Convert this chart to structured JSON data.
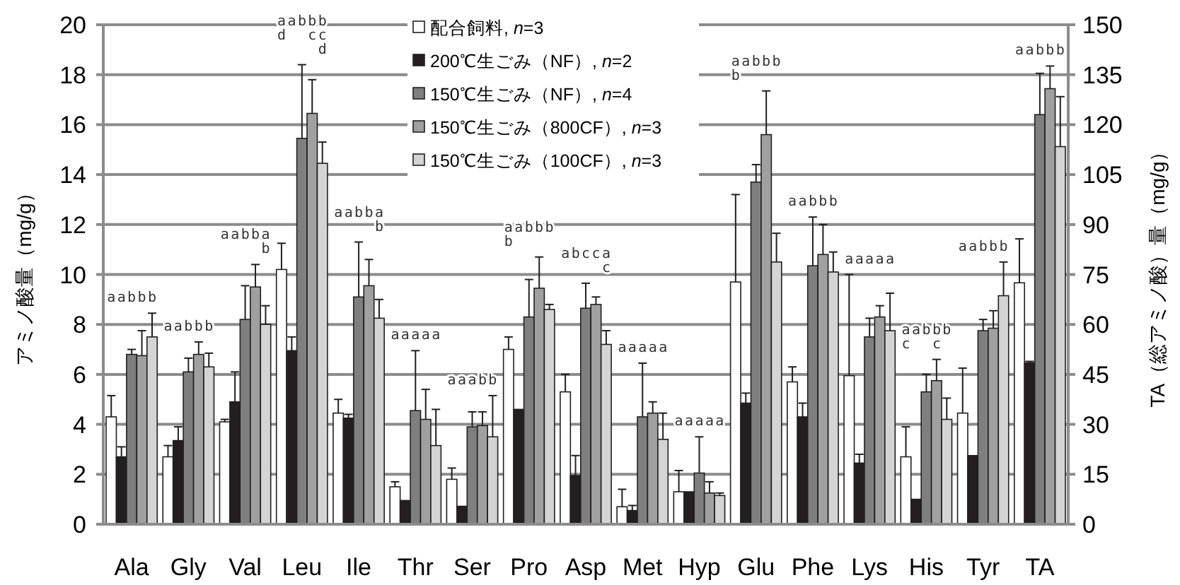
{
  "chart_data": {
    "type": "bar",
    "ylabel": "アミノ酸量（mg/g）",
    "y2label": "TA（総アミノ酸）量（mg/g）",
    "categories": [
      "Ala",
      "Gly",
      "Val",
      "Leu",
      "Ile",
      "Thr",
      "Ser",
      "Pro",
      "Asp",
      "Met",
      "Hyp",
      "Glu",
      "Phe",
      "Lys",
      "His",
      "Tyr",
      "TA"
    ],
    "ylim": [
      0,
      20
    ],
    "yticks": [
      0,
      2,
      4,
      6,
      8,
      10,
      12,
      14,
      16,
      18,
      20
    ],
    "y2lim": [
      0,
      150
    ],
    "y2ticks": [
      0,
      15,
      30,
      45,
      60,
      75,
      90,
      105,
      120,
      135,
      150
    ],
    "grid": "y",
    "legend": "top",
    "series": [
      {
        "name": "配合飼料, *n*=3",
        "color": "#ffffff",
        "values": [
          4.3,
          2.7,
          4.1,
          10.2,
          4.45,
          1.5,
          1.8,
          7.0,
          5.3,
          0.7,
          1.3,
          9.7,
          5.7,
          5.95,
          2.7,
          4.45,
          null
        ],
        "errors": [
          [
            4.3,
            5.15
          ],
          [
            2.7,
            3.15
          ],
          [
            4.1,
            4.2
          ],
          [
            10.2,
            11.25
          ],
          [
            4.45,
            5.0
          ],
          [
            1.5,
            1.7
          ],
          [
            1.8,
            2.25
          ],
          [
            7.0,
            7.5
          ],
          [
            5.3,
            6.0
          ],
          [
            0.7,
            1.4
          ],
          [
            1.3,
            2.15
          ],
          [
            9.7,
            13.2
          ],
          [
            5.7,
            6.3
          ],
          [
            5.95,
            10.0
          ],
          [
            2.7,
            3.9
          ],
          [
            4.45,
            6.25
          ],
          null
        ]
      },
      {
        "name": "200℃生ごみ（NF）, *n*=2",
        "color": "#231f20",
        "values": [
          2.7,
          3.35,
          4.9,
          6.95,
          4.25,
          0.95,
          0.72,
          4.6,
          1.95,
          0.55,
          1.3,
          4.85,
          4.3,
          2.45,
          1.0,
          2.75,
          null
        ],
        "errors": [
          [
            2.7,
            3.1
          ],
          [
            3.35,
            3.9
          ],
          [
            4.9,
            6.1
          ],
          [
            6.95,
            7.5
          ],
          [
            4.25,
            4.4
          ],
          null,
          null,
          null,
          [
            1.95,
            2.75
          ],
          [
            0.55,
            0.75
          ],
          null,
          [
            4.85,
            5.25
          ],
          [
            4.3,
            4.85
          ],
          [
            2.45,
            2.8
          ],
          null,
          null,
          null
        ]
      },
      {
        "name": "150℃生ごみ（NF）, *n*=4",
        "color": "#7f7f7f",
        "values": [
          6.8,
          6.1,
          8.2,
          15.45,
          9.1,
          4.55,
          3.9,
          8.3,
          8.65,
          4.3,
          2.05,
          13.7,
          10.35,
          7.5,
          5.3,
          7.75,
          null
        ],
        "errors": [
          [
            6.8,
            7.0
          ],
          [
            6.1,
            6.65
          ],
          [
            8.2,
            9.55
          ],
          [
            15.45,
            18.4
          ],
          [
            9.1,
            11.3
          ],
          [
            4.55,
            6.95
          ],
          [
            3.9,
            4.5
          ],
          [
            8.3,
            9.8
          ],
          [
            8.65,
            9.65
          ],
          [
            4.3,
            6.45
          ],
          [
            2.05,
            3.5
          ],
          [
            13.7,
            14.4
          ],
          [
            10.35,
            12.3
          ],
          [
            7.5,
            8.25
          ],
          [
            5.3,
            6.0
          ],
          [
            7.75,
            8.2
          ],
          null
        ]
      },
      {
        "name": "150℃生ごみ（800CF）, *n*=3",
        "color": "#a0a0a0",
        "values": [
          6.75,
          6.8,
          9.5,
          16.45,
          9.55,
          4.2,
          3.95,
          9.45,
          8.8,
          4.45,
          1.25,
          15.6,
          10.8,
          8.3,
          5.75,
          7.85,
          null
        ],
        "errors": [
          [
            6.75,
            7.75
          ],
          [
            6.8,
            7.3
          ],
          [
            9.5,
            10.4
          ],
          [
            16.45,
            17.8
          ],
          [
            9.55,
            10.6
          ],
          [
            4.2,
            5.4
          ],
          [
            3.95,
            4.5
          ],
          [
            9.45,
            10.7
          ],
          [
            8.8,
            9.1
          ],
          [
            4.45,
            4.9
          ],
          [
            1.25,
            1.7
          ],
          [
            15.6,
            17.35
          ],
          [
            10.8,
            12.0
          ],
          [
            8.3,
            8.75
          ],
          [
            5.75,
            6.6
          ],
          [
            7.85,
            8.55
          ],
          null
        ]
      },
      {
        "name": "150℃生ごみ（100CF）, *n*=3",
        "color": "#d4d4d4",
        "values": [
          7.5,
          6.3,
          8.0,
          14.45,
          8.25,
          3.15,
          3.5,
          8.6,
          7.2,
          3.4,
          1.15,
          10.5,
          10.1,
          7.75,
          4.2,
          9.15,
          null
        ],
        "errors": [
          [
            7.5,
            8.45
          ],
          [
            6.3,
            6.85
          ],
          [
            8.0,
            8.75
          ],
          [
            14.45,
            15.3
          ],
          [
            8.25,
            9.0
          ],
          [
            3.15,
            4.6
          ],
          [
            3.5,
            5.15
          ],
          [
            8.6,
            8.8
          ],
          [
            7.2,
            7.75
          ],
          [
            3.4,
            4.45
          ],
          [
            1.15,
            1.25
          ],
          [
            10.5,
            11.65
          ],
          [
            10.1,
            10.9
          ],
          [
            7.75,
            9.25
          ],
          [
            4.2,
            5.05
          ],
          [
            9.15,
            10.5
          ],
          null
        ]
      },
      {
        "axis": "y2",
        "color": "#ffffff",
        "values": [
          null,
          null,
          null,
          null,
          null,
          null,
          null,
          null,
          null,
          null,
          null,
          null,
          null,
          null,
          null,
          null,
          72.5
        ],
        "errors": [
          null,
          null,
          null,
          null,
          null,
          null,
          null,
          null,
          null,
          null,
          null,
          null,
          null,
          null,
          null,
          null,
          [
            72.5,
            85.7
          ]
        ]
      },
      {
        "axis": "y2",
        "color": "#231f20",
        "values": [
          null,
          null,
          null,
          null,
          null,
          null,
          null,
          null,
          null,
          null,
          null,
          null,
          null,
          null,
          null,
          null,
          48.5
        ],
        "errors": [
          null,
          null,
          null,
          null,
          null,
          null,
          null,
          null,
          null,
          null,
          null,
          null,
          null,
          null,
          null,
          null,
          [
            48.5,
            48.9
          ]
        ]
      },
      {
        "axis": "y2",
        "color": "#7f7f7f",
        "values": [
          null,
          null,
          null,
          null,
          null,
          null,
          null,
          null,
          null,
          null,
          null,
          null,
          null,
          null,
          null,
          null,
          123
        ],
        "errors": [
          null,
          null,
          null,
          null,
          null,
          null,
          null,
          null,
          null,
          null,
          null,
          null,
          null,
          null,
          null,
          null,
          [
            123,
            135.4
          ]
        ]
      },
      {
        "axis": "y2",
        "color": "#a0a0a0",
        "values": [
          null,
          null,
          null,
          null,
          null,
          null,
          null,
          null,
          null,
          null,
          null,
          null,
          null,
          null,
          null,
          null,
          130.8
        ],
        "errors": [
          null,
          null,
          null,
          null,
          null,
          null,
          null,
          null,
          null,
          null,
          null,
          null,
          null,
          null,
          null,
          null,
          [
            130.8,
            137.6
          ]
        ]
      },
      {
        "axis": "y2",
        "color": "#d4d4d4",
        "values": [
          null,
          null,
          null,
          null,
          null,
          null,
          null,
          null,
          null,
          null,
          null,
          null,
          null,
          null,
          null,
          null,
          113.4
        ],
        "errors": [
          null,
          null,
          null,
          null,
          null,
          null,
          null,
          null,
          null,
          null,
          null,
          null,
          null,
          null,
          null,
          null,
          [
            113.4,
            128.4
          ]
        ]
      }
    ],
    "annotations": [
      "aabbb",
      "aabbb",
      "aabba",
      "    b",
      "aabbb",
      "d  cc",
      "    d",
      "aabba",
      "    b",
      "aaaaa",
      "aaabb",
      "aabbb",
      "b",
      "abcca",
      "    c",
      "aaaaa",
      "aaaaa",
      "aabbb",
      "b",
      "aabbb",
      "aaaaa",
      "aabbb",
      "c  c",
      "aabbb",
      "aabbb"
    ]
  }
}
